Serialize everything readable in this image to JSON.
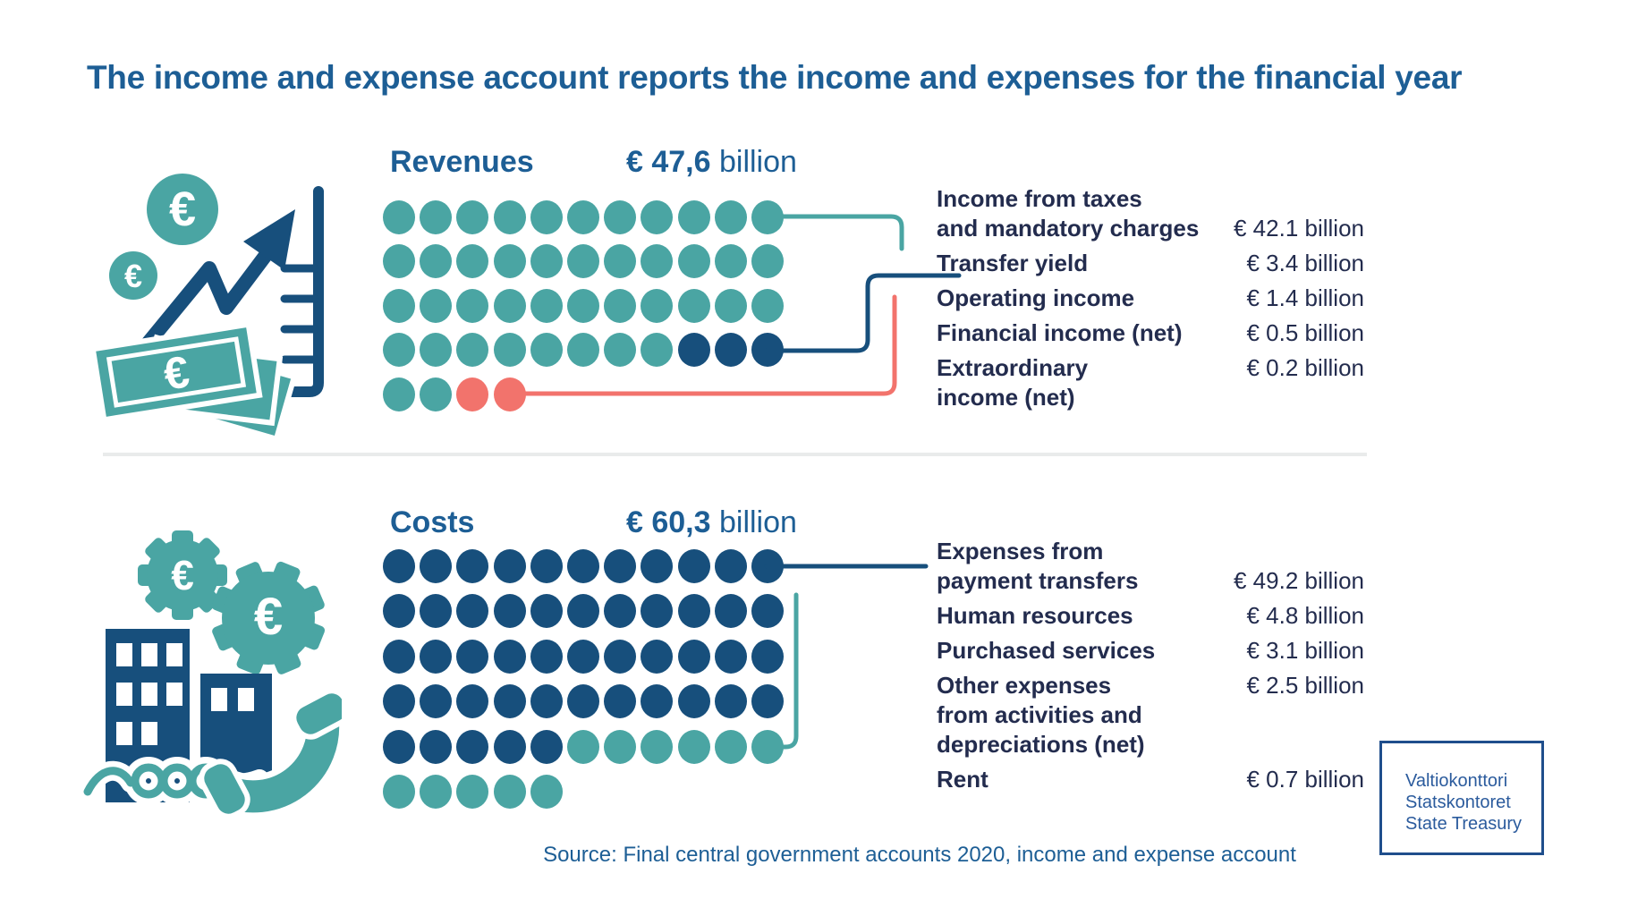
{
  "palette": {
    "teal": "#4AA5A3",
    "navy": "#174F7C",
    "red": "#F2736C",
    "blue": "#1D5E95",
    "text_navy": "#232C4E",
    "divider": "#E9EBEB",
    "logo_blue": "#2B5B9D",
    "logo_border": "#1F4E8C"
  },
  "dot_colors": {
    "T": "teal",
    "N": "navy",
    "R": "red"
  },
  "title": "The income and expense account reports the income and expenses for the financial year",
  "revenues": {
    "label": "Revenues",
    "amount": "€ 47,6",
    "unit": "billion",
    "grid": {
      "rows": [
        "TTTTTTTTTTT",
        "TTTTTTTTTTT",
        "TTTTTTTTTTT",
        "TTTTTTTTNNN",
        "TTRR"
      ]
    },
    "legend": [
      {
        "label": "Income from taxes\nand mandatory charges",
        "value": "€ 42.1 billion",
        "align": "end"
      },
      {
        "label": "Transfer yield",
        "value": "€ 3.4 billion",
        "align": "start"
      },
      {
        "label": "Operating income",
        "value": "€ 1.4 billion",
        "align": "start"
      },
      {
        "label": "Financial income (net)",
        "value": "€ 0.5 billion",
        "align": "start"
      },
      {
        "label": "Extraordinary\nincome (net)",
        "value": "€ 0.2 billion",
        "align": "start"
      }
    ]
  },
  "costs": {
    "label": "Costs",
    "amount": "€ 60,3",
    "unit": "billion",
    "grid": {
      "rows": [
        "NNNNNNNNNNN",
        "NNNNNNNNNNN",
        "NNNNNNNNNNN",
        "NNNNNNNNNNN",
        "NNNNNTTTTTT",
        "TTTTT"
      ]
    },
    "legend": [
      {
        "label": "Expenses from\npayment transfers",
        "value": "€ 49.2 billion",
        "align": "end"
      },
      {
        "label": "Human resources",
        "value": "€ 4.8 billion",
        "align": "start"
      },
      {
        "label": "Purchased services",
        "value": "€ 3.1 billion",
        "align": "start"
      },
      {
        "label": "Other expenses\nfrom activities and\ndepreciations (net)",
        "value": "€ 2.5 billion",
        "align": "start"
      },
      {
        "label": "Rent",
        "value": "€ 0.7 billion",
        "align": "start"
      }
    ]
  },
  "source": "Source: Final central government accounts 2020, income and expense account",
  "logo": {
    "lines": "Valtiokonttori\nStatskontoret\nState Treasury"
  },
  "chart_data": [
    {
      "type": "bar",
      "rendered_as": "pictogram-dot-matrix",
      "title": "Revenues",
      "total_label": "€ 47,6 billion",
      "total_value": 47.6,
      "unit": "billion EUR (1 dot ≈ 1 billion)",
      "categories": [
        "Income from taxes and mandatory charges",
        "Transfer yield",
        "Operating income",
        "Financial income (net)",
        "Extraordinary income (net)"
      ],
      "values": [
        42.1,
        3.4,
        1.4,
        0.5,
        0.2
      ],
      "dot_counts": {
        "teal": 43,
        "navy": 3,
        "red": 2
      },
      "legend_position": "right"
    },
    {
      "type": "bar",
      "rendered_as": "pictogram-dot-matrix",
      "title": "Costs",
      "total_label": "€ 60,3 billion",
      "total_value": 60.3,
      "unit": "billion EUR (1 dot ≈ 1 billion)",
      "categories": [
        "Expenses from payment transfers",
        "Human resources",
        "Purchased services",
        "Other expenses from activities and depreciations (net)",
        "Rent"
      ],
      "values": [
        49.2,
        4.8,
        3.1,
        2.5,
        0.7
      ],
      "dot_counts": {
        "navy": 49,
        "teal": 11
      },
      "legend_position": "right"
    }
  ]
}
